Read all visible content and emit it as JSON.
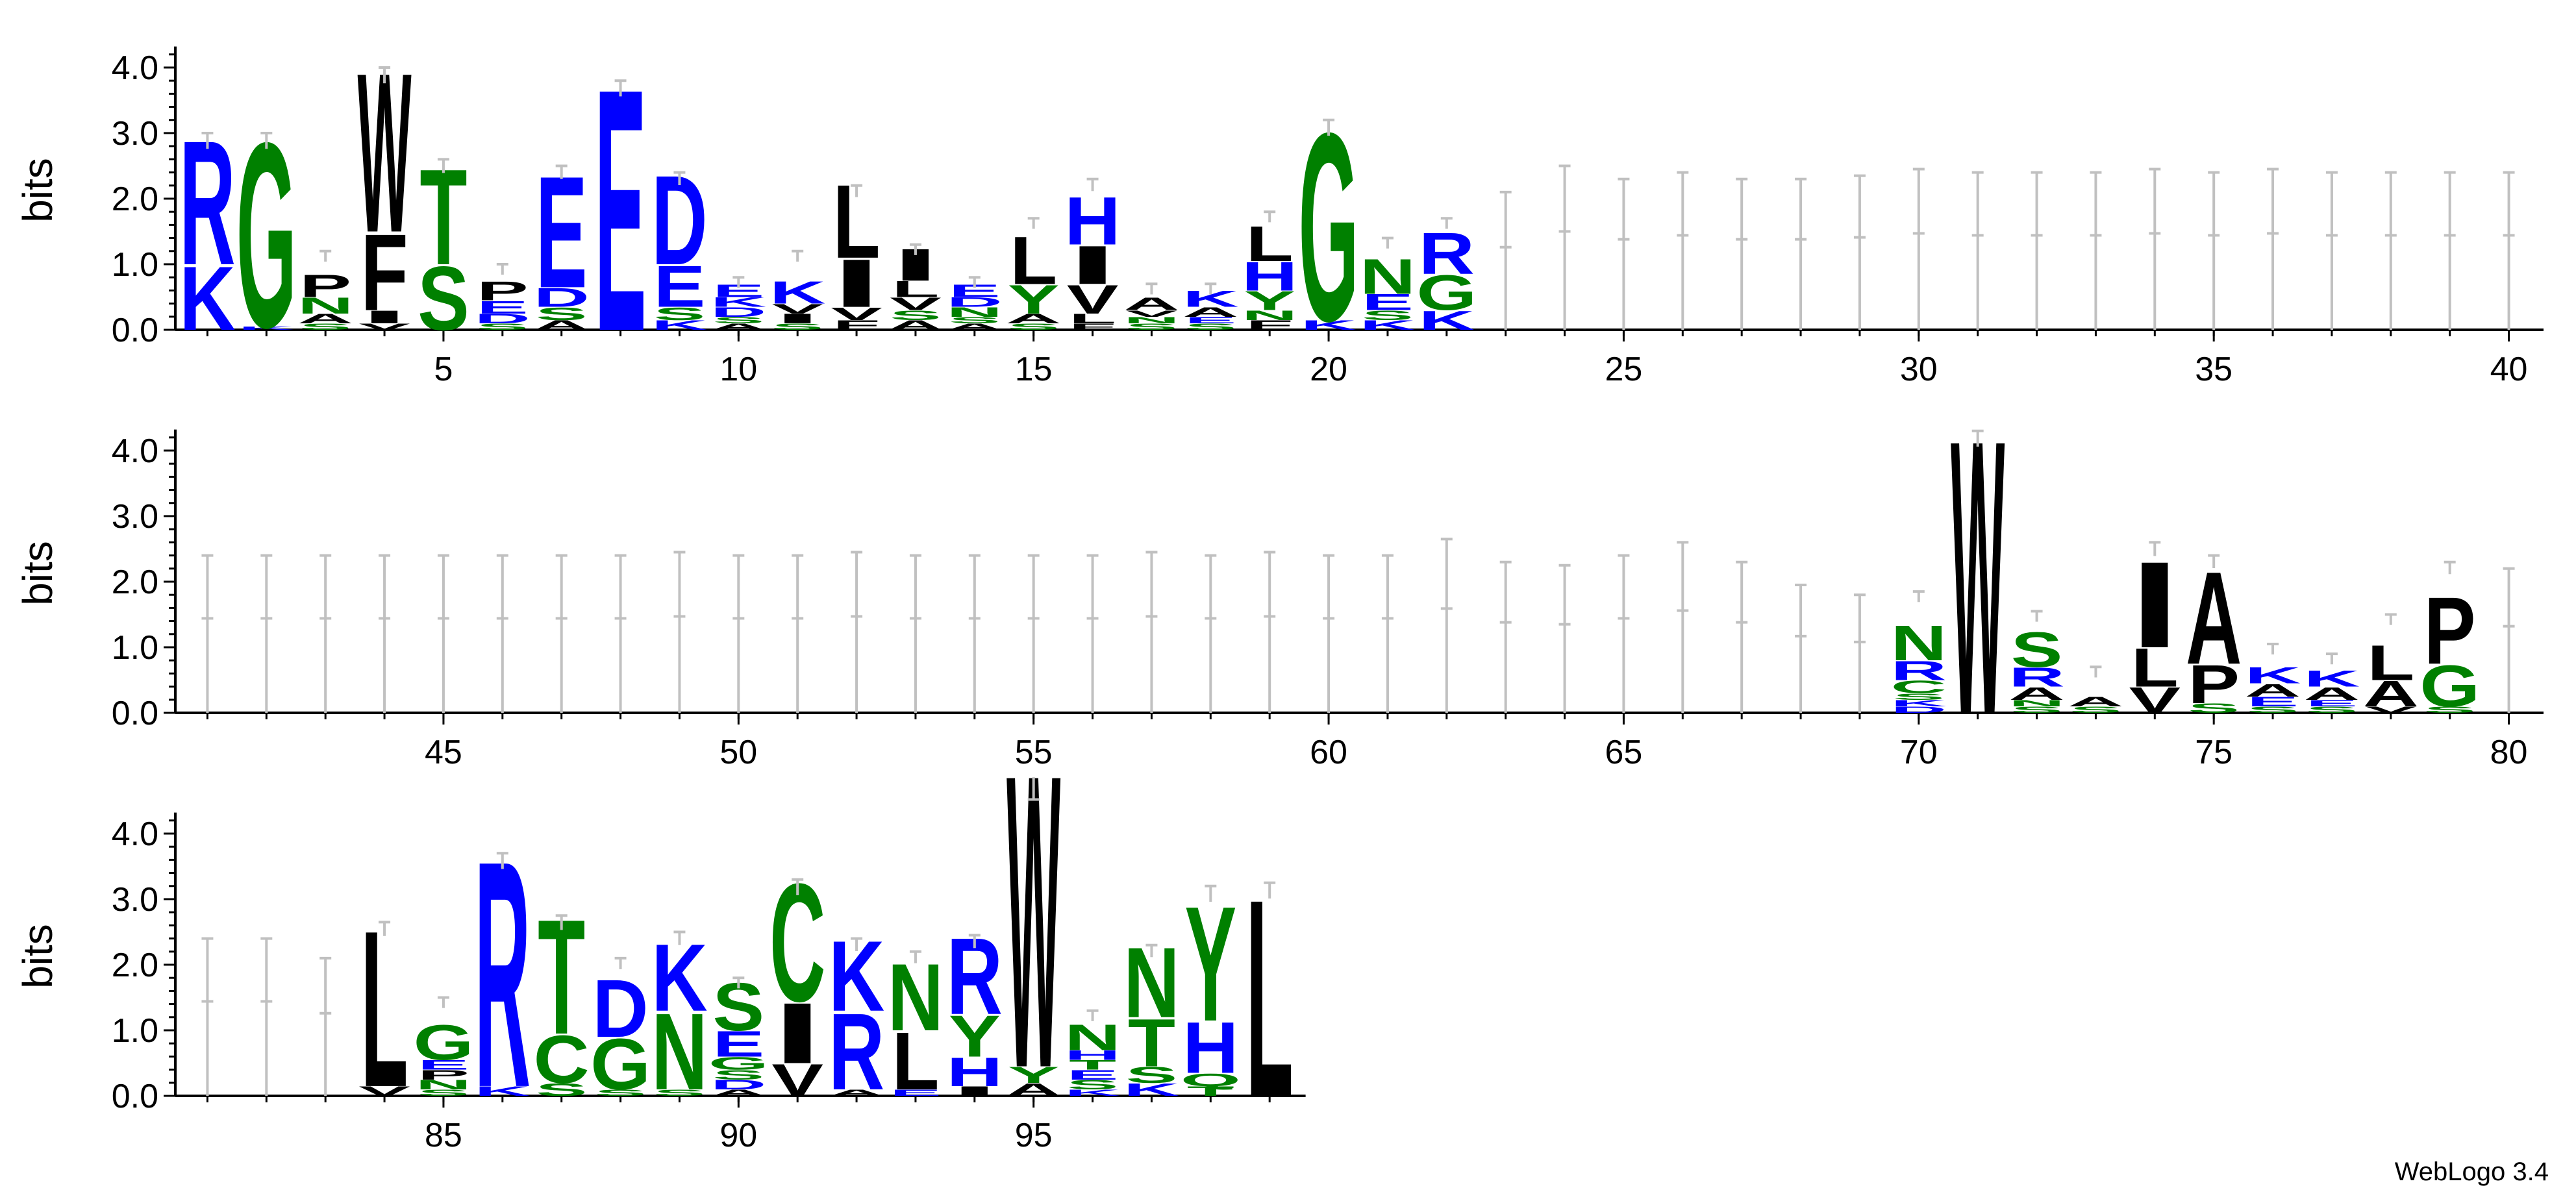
{
  "chart_data": {
    "type": "sequence-logo",
    "ylabel": "bits",
    "ylim": [
      0,
      4.32
    ],
    "y_ticks": [
      "0.0",
      "1.0",
      "2.0",
      "3.0",
      "4.0"
    ],
    "credit": "WebLogo 3.4",
    "colors": {
      "hydrophobic": "#000000",
      "polar": "#008000",
      "basic": "#0000ff",
      "acidic": "#0000ff",
      "errorbar": "#c0c0c0"
    },
    "rows": [
      {
        "start": 1,
        "end": 40,
        "x_ticks": [
          5,
          10,
          15,
          20,
          25,
          30,
          35,
          40
        ]
      },
      {
        "start": 41,
        "end": 80,
        "x_ticks": [
          45,
          50,
          55,
          60,
          65,
          70,
          75,
          80
        ]
      },
      {
        "start": 81,
        "end": 99,
        "x_ticks": [
          85,
          90,
          95
        ]
      }
    ],
    "x_tick_labels": [
      "5",
      "10",
      "15",
      "20",
      "25",
      "30",
      "35",
      "40",
      "45",
      "50",
      "55",
      "60",
      "65",
      "70",
      "75",
      "80",
      "85",
      "90",
      "95"
    ],
    "positions": [
      {
        "pos": 1,
        "err": 3.0,
        "stack": [
          [
            "K",
            1.0
          ],
          [
            "R",
            1.95
          ]
        ]
      },
      {
        "pos": 2,
        "err": 3.0,
        "stack": [
          [
            "K",
            0.05
          ],
          [
            "G",
            2.9
          ]
        ]
      },
      {
        "pos": 3,
        "err": 1.2,
        "stack": [
          [
            "S",
            0.1
          ],
          [
            "A",
            0.15
          ],
          [
            "N",
            0.25
          ],
          [
            "P",
            0.35
          ]
        ]
      },
      {
        "pos": 4,
        "err": 4.0,
        "stack": [
          [
            "V",
            0.1
          ],
          [
            "I",
            0.2
          ],
          [
            "F",
            1.2
          ],
          [
            "W",
            2.5
          ]
        ]
      },
      {
        "pos": 5,
        "err": 2.6,
        "stack": [
          [
            "S",
            1.0
          ],
          [
            "T",
            1.5
          ]
        ]
      },
      {
        "pos": 6,
        "err": 1.0,
        "stack": [
          [
            "S",
            0.1
          ],
          [
            "D",
            0.15
          ],
          [
            "E",
            0.2
          ],
          [
            "P",
            0.3
          ]
        ]
      },
      {
        "pos": 7,
        "err": 2.5,
        "stack": [
          [
            "A",
            0.15
          ],
          [
            "S",
            0.2
          ],
          [
            "D",
            0.3
          ],
          [
            "E",
            1.75
          ]
        ]
      },
      {
        "pos": 8,
        "err": 3.8,
        "stack": [
          [
            "E",
            3.8
          ]
        ]
      },
      {
        "pos": 9,
        "err": 2.4,
        "stack": [
          [
            "K",
            0.15
          ],
          [
            "S",
            0.2
          ],
          [
            "E",
            0.65
          ],
          [
            "D",
            1.4
          ]
        ]
      },
      {
        "pos": 10,
        "err": 0.8,
        "stack": [
          [
            "A",
            0.1
          ],
          [
            "S",
            0.1
          ],
          [
            "D",
            0.15
          ],
          [
            "K",
            0.15
          ],
          [
            "E",
            0.2
          ]
        ]
      },
      {
        "pos": 11,
        "err": 1.2,
        "stack": [
          [
            "S",
            0.1
          ],
          [
            "I",
            0.15
          ],
          [
            "V",
            0.15
          ],
          [
            "K",
            0.35
          ]
        ]
      },
      {
        "pos": 12,
        "err": 2.2,
        "stack": [
          [
            "F",
            0.15
          ],
          [
            "V",
            0.2
          ],
          [
            "I",
            0.75
          ],
          [
            "L",
            1.15
          ]
        ]
      },
      {
        "pos": 13,
        "err": 1.3,
        "stack": [
          [
            "A",
            0.15
          ],
          [
            "S",
            0.15
          ],
          [
            "V",
            0.2
          ],
          [
            "L",
            0.25
          ],
          [
            "I",
            0.5
          ]
        ]
      },
      {
        "pos": 14,
        "err": 0.8,
        "stack": [
          [
            "A",
            0.1
          ],
          [
            "S",
            0.1
          ],
          [
            "N",
            0.15
          ],
          [
            "D",
            0.15
          ],
          [
            "E",
            0.2
          ]
        ]
      },
      {
        "pos": 15,
        "err": 1.7,
        "stack": [
          [
            "S",
            0.1
          ],
          [
            "A",
            0.15
          ],
          [
            "Y",
            0.45
          ],
          [
            "L",
            0.75
          ]
        ]
      },
      {
        "pos": 16,
        "err": 2.3,
        "stack": [
          [
            "F",
            0.1
          ],
          [
            "L",
            0.15
          ],
          [
            "V",
            0.45
          ],
          [
            "I",
            0.6
          ],
          [
            "H",
            0.75
          ]
        ]
      },
      {
        "pos": 17,
        "err": 0.7,
        "stack": [
          [
            "S",
            0.1
          ],
          [
            "N",
            0.1
          ],
          [
            "V",
            0.1
          ],
          [
            "A",
            0.2
          ]
        ]
      },
      {
        "pos": 18,
        "err": 0.7,
        "stack": [
          [
            "S",
            0.1
          ],
          [
            "E",
            0.1
          ],
          [
            "A",
            0.15
          ],
          [
            "K",
            0.25
          ]
        ]
      },
      {
        "pos": 19,
        "err": 1.8,
        "stack": [
          [
            "F",
            0.15
          ],
          [
            "N",
            0.15
          ],
          [
            "Y",
            0.3
          ],
          [
            "H",
            0.45
          ],
          [
            "L",
            0.55
          ]
        ]
      },
      {
        "pos": 20,
        "err": 3.2,
        "stack": [
          [
            "K",
            0.15
          ],
          [
            "G",
            2.95
          ]
        ]
      },
      {
        "pos": 21,
        "err": 1.4,
        "stack": [
          [
            "K",
            0.15
          ],
          [
            "S",
            0.15
          ],
          [
            "E",
            0.25
          ],
          [
            "N",
            0.55
          ]
        ]
      },
      {
        "pos": 22,
        "err": 1.7,
        "stack": [
          [
            "K",
            0.3
          ],
          [
            "G",
            0.55
          ],
          [
            "R",
            0.65
          ]
        ]
      },
      {
        "pos": 23,
        "err": 2.1,
        "stack": []
      },
      {
        "pos": 24,
        "err": 2.5,
        "stack": []
      },
      {
        "pos": 25,
        "err": 2.3,
        "stack": []
      },
      {
        "pos": 26,
        "err": 2.4,
        "stack": []
      },
      {
        "pos": 27,
        "err": 2.3,
        "stack": []
      },
      {
        "pos": 28,
        "err": 2.3,
        "stack": []
      },
      {
        "pos": 29,
        "err": 2.35,
        "stack": []
      },
      {
        "pos": 30,
        "err": 2.45,
        "stack": []
      },
      {
        "pos": 31,
        "err": 2.4,
        "stack": []
      },
      {
        "pos": 32,
        "err": 2.4,
        "stack": []
      },
      {
        "pos": 33,
        "err": 2.4,
        "stack": []
      },
      {
        "pos": 34,
        "err": 2.45,
        "stack": []
      },
      {
        "pos": 35,
        "err": 2.4,
        "stack": []
      },
      {
        "pos": 36,
        "err": 2.45,
        "stack": []
      },
      {
        "pos": 37,
        "err": 2.4,
        "stack": []
      },
      {
        "pos": 38,
        "err": 2.4,
        "stack": []
      },
      {
        "pos": 39,
        "err": 2.4,
        "stack": []
      },
      {
        "pos": 40,
        "err": 2.4,
        "stack": []
      },
      {
        "pos": 41,
        "err": 2.4,
        "stack": []
      },
      {
        "pos": 42,
        "err": 2.4,
        "stack": []
      },
      {
        "pos": 43,
        "err": 2.4,
        "stack": []
      },
      {
        "pos": 44,
        "err": 2.4,
        "stack": []
      },
      {
        "pos": 45,
        "err": 2.4,
        "stack": []
      },
      {
        "pos": 46,
        "err": 2.4,
        "stack": []
      },
      {
        "pos": 47,
        "err": 2.4,
        "stack": []
      },
      {
        "pos": 48,
        "err": 2.4,
        "stack": []
      },
      {
        "pos": 49,
        "err": 2.45,
        "stack": []
      },
      {
        "pos": 50,
        "err": 2.4,
        "stack": []
      },
      {
        "pos": 51,
        "err": 2.4,
        "stack": []
      },
      {
        "pos": 52,
        "err": 2.45,
        "stack": []
      },
      {
        "pos": 53,
        "err": 2.4,
        "stack": []
      },
      {
        "pos": 54,
        "err": 2.4,
        "stack": []
      },
      {
        "pos": 55,
        "err": 2.4,
        "stack": []
      },
      {
        "pos": 56,
        "err": 2.4,
        "stack": []
      },
      {
        "pos": 57,
        "err": 2.45,
        "stack": []
      },
      {
        "pos": 58,
        "err": 2.4,
        "stack": []
      },
      {
        "pos": 59,
        "err": 2.45,
        "stack": []
      },
      {
        "pos": 60,
        "err": 2.4,
        "stack": []
      },
      {
        "pos": 61,
        "err": 2.4,
        "stack": []
      },
      {
        "pos": 62,
        "err": 2.65,
        "stack": []
      },
      {
        "pos": 63,
        "err": 2.3,
        "stack": []
      },
      {
        "pos": 64,
        "err": 2.25,
        "stack": []
      },
      {
        "pos": 65,
        "err": 2.4,
        "stack": []
      },
      {
        "pos": 66,
        "err": 2.6,
        "stack": []
      },
      {
        "pos": 67,
        "err": 2.3,
        "stack": []
      },
      {
        "pos": 68,
        "err": 1.95,
        "stack": []
      },
      {
        "pos": 69,
        "err": 1.8,
        "stack": []
      },
      {
        "pos": 70,
        "err": 1.85,
        "stack": [
          [
            "D",
            0.1
          ],
          [
            "K",
            0.1
          ],
          [
            "S",
            0.1
          ],
          [
            "C",
            0.2
          ],
          [
            "R",
            0.3
          ],
          [
            "N",
            0.55
          ]
        ]
      },
      {
        "pos": 71,
        "err": 4.3,
        "stack": [
          [
            "W",
            4.3
          ]
        ]
      },
      {
        "pos": 72,
        "err": 1.55,
        "stack": [
          [
            "S",
            0.1
          ],
          [
            "N",
            0.1
          ],
          [
            "A",
            0.2
          ],
          [
            "R",
            0.3
          ],
          [
            "S",
            0.55
          ]
        ]
      },
      {
        "pos": 73,
        "err": 0.7,
        "stack": [
          [
            "S",
            0.1
          ],
          [
            "A",
            0.15
          ]
        ]
      },
      {
        "pos": 74,
        "err": 2.6,
        "stack": [
          [
            "V",
            0.4
          ],
          [
            "L",
            0.6
          ],
          [
            "I",
            1.35
          ]
        ]
      },
      {
        "pos": 75,
        "err": 2.4,
        "stack": [
          [
            "S",
            0.15
          ],
          [
            "P",
            0.6
          ],
          [
            "A",
            1.45
          ]
        ]
      },
      {
        "pos": 76,
        "err": 1.05,
        "stack": [
          [
            "S",
            0.1
          ],
          [
            "E",
            0.15
          ],
          [
            "A",
            0.2
          ],
          [
            "K",
            0.25
          ]
        ]
      },
      {
        "pos": 77,
        "err": 0.9,
        "stack": [
          [
            "S",
            0.1
          ],
          [
            "E",
            0.1
          ],
          [
            "A",
            0.2
          ],
          [
            "K",
            0.25
          ]
        ]
      },
      {
        "pos": 78,
        "err": 1.5,
        "stack": [
          [
            "V",
            0.1
          ],
          [
            "A",
            0.4
          ],
          [
            "L",
            0.55
          ]
        ]
      },
      {
        "pos": 79,
        "err": 2.3,
        "stack": [
          [
            "S",
            0.1
          ],
          [
            "G",
            0.65
          ],
          [
            "P",
            1.05
          ]
        ]
      },
      {
        "pos": 80,
        "err": 2.2,
        "stack": []
      },
      {
        "pos": 81,
        "err": 2.4,
        "stack": []
      },
      {
        "pos": 82,
        "err": 2.4,
        "stack": []
      },
      {
        "pos": 83,
        "err": 2.1,
        "stack": []
      },
      {
        "pos": 84,
        "err": 2.65,
        "stack": [
          [
            "V",
            0.15
          ],
          [
            "L",
            2.45
          ]
        ]
      },
      {
        "pos": 85,
        "err": 1.5,
        "stack": [
          [
            "S",
            0.1
          ],
          [
            "N",
            0.15
          ],
          [
            "P",
            0.15
          ],
          [
            "E",
            0.15
          ],
          [
            "G",
            0.55
          ]
        ]
      },
      {
        "pos": 86,
        "err": 3.7,
        "stack": [
          [
            "K",
            0.15
          ],
          [
            "R",
            3.55
          ]
        ]
      },
      {
        "pos": 87,
        "err": 2.75,
        "stack": [
          [
            "S",
            0.2
          ],
          [
            "C",
            0.75
          ],
          [
            "T",
            1.8
          ]
        ]
      },
      {
        "pos": 88,
        "err": 2.1,
        "stack": [
          [
            "S",
            0.1
          ],
          [
            "G",
            0.8
          ],
          [
            "D",
            0.9
          ]
        ]
      },
      {
        "pos": 89,
        "err": 2.5,
        "stack": [
          [
            "S",
            0.1
          ],
          [
            "N",
            1.2
          ],
          [
            "K",
            1.05
          ]
        ]
      },
      {
        "pos": 90,
        "err": 1.8,
        "stack": [
          [
            "A",
            0.1
          ],
          [
            "D",
            0.15
          ],
          [
            "S",
            0.15
          ],
          [
            "G",
            0.2
          ],
          [
            "E",
            0.4
          ],
          [
            "S",
            0.75
          ]
        ]
      },
      {
        "pos": 91,
        "err": 3.3,
        "stack": [
          [
            "V",
            0.5
          ],
          [
            "I",
            0.95
          ],
          [
            "C",
            1.85
          ]
        ]
      },
      {
        "pos": 92,
        "err": 2.4,
        "stack": [
          [
            "A",
            0.1
          ],
          [
            "R",
            1.2
          ],
          [
            "K",
            1.1
          ]
        ]
      },
      {
        "pos": 93,
        "err": 2.2,
        "stack": [
          [
            "E",
            0.1
          ],
          [
            "L",
            0.9
          ],
          [
            "N",
            1.05
          ]
        ]
      },
      {
        "pos": 94,
        "err": 2.45,
        "stack": [
          [
            "I",
            0.15
          ],
          [
            "H",
            0.45
          ],
          [
            "Y",
            0.65
          ],
          [
            "R",
            1.2
          ]
        ]
      },
      {
        "pos": 95,
        "err": 5.1,
        "stack": [
          [
            "A",
            0.2
          ],
          [
            "Y",
            0.25
          ],
          [
            "W",
            4.6
          ]
        ]
      },
      {
        "pos": 96,
        "err": 1.3,
        "stack": [
          [
            "K",
            0.1
          ],
          [
            "S",
            0.15
          ],
          [
            "E",
            0.15
          ],
          [
            "T",
            0.15
          ],
          [
            "H",
            0.15
          ],
          [
            "N",
            0.4
          ]
        ]
      },
      {
        "pos": 97,
        "err": 2.3,
        "stack": [
          [
            "K",
            0.2
          ],
          [
            "S",
            0.25
          ],
          [
            "T",
            0.75
          ],
          [
            "N",
            1.1
          ]
        ]
      },
      {
        "pos": 98,
        "err": 3.2,
        "stack": [
          [
            "T",
            0.15
          ],
          [
            "Q",
            0.2
          ],
          [
            "H",
            0.8
          ],
          [
            "Y",
            1.8
          ]
        ]
      },
      {
        "pos": 99,
        "err": 3.25,
        "stack": [
          [
            "L",
            3.1
          ]
        ]
      }
    ]
  }
}
